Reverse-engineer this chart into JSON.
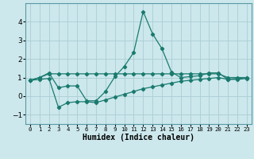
{
  "xlabel": "Humidex (Indice chaleur)",
  "background_color": "#cce8ec",
  "grid_color": "#aacdd4",
  "line_color": "#1a7a6e",
  "xlim": [
    -0.5,
    23.5
  ],
  "ylim": [
    -1.5,
    5.0
  ],
  "yticks": [
    -1,
    0,
    1,
    2,
    3,
    4
  ],
  "xtick_labels": [
    "0",
    "1",
    "2",
    "3",
    "4",
    "5",
    "6",
    "7",
    "8",
    "9",
    "10",
    "11",
    "12",
    "13",
    "14",
    "15",
    "16",
    "17",
    "18",
    "19",
    "20",
    "21",
    "22",
    "23"
  ],
  "line1_x": [
    0,
    1,
    2,
    3,
    4,
    5,
    6,
    7,
    8,
    9,
    10,
    11,
    12,
    13,
    14,
    15,
    16,
    17,
    18,
    19,
    20,
    21,
    22,
    23
  ],
  "line1_y": [
    0.85,
    1.0,
    1.25,
    0.45,
    0.55,
    0.55,
    -0.25,
    -0.25,
    0.25,
    1.05,
    1.6,
    2.35,
    4.55,
    3.35,
    2.55,
    1.3,
    1.0,
    1.05,
    1.1,
    1.25,
    1.25,
    0.9,
    0.95,
    1.0
  ],
  "line2_x": [
    0,
    1,
    2,
    3,
    4,
    5,
    6,
    7,
    8,
    9,
    10,
    11,
    12,
    13,
    14,
    15,
    16,
    17,
    18,
    19,
    20,
    21,
    22,
    23
  ],
  "line2_y": [
    0.85,
    1.0,
    1.2,
    1.2,
    1.2,
    1.2,
    1.2,
    1.2,
    1.2,
    1.2,
    1.2,
    1.2,
    1.2,
    1.2,
    1.2,
    1.2,
    1.2,
    1.2,
    1.2,
    1.2,
    1.2,
    1.0,
    1.0,
    1.0
  ],
  "line3_x": [
    0,
    1,
    2,
    3,
    4,
    5,
    6,
    7,
    8,
    9,
    10,
    11,
    12,
    13,
    14,
    15,
    16,
    17,
    18,
    19,
    20,
    21,
    22,
    23
  ],
  "line3_y": [
    0.85,
    0.9,
    0.95,
    -0.6,
    -0.35,
    -0.3,
    -0.3,
    -0.35,
    -0.2,
    -0.05,
    0.1,
    0.25,
    0.4,
    0.5,
    0.6,
    0.7,
    0.8,
    0.85,
    0.9,
    0.95,
    1.0,
    0.9,
    0.9,
    0.95
  ]
}
